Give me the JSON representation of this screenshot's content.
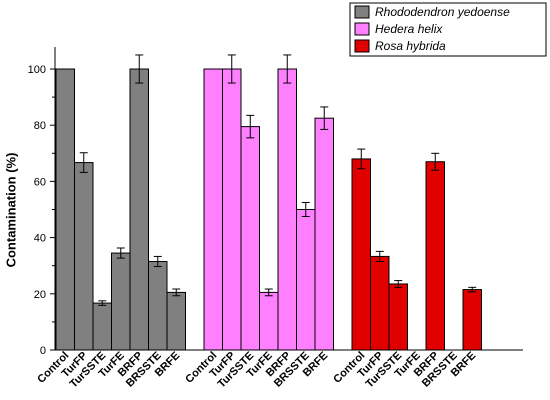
{
  "chart_data": {
    "type": "bar",
    "ylabel": "Contamination (%)",
    "ylim": [
      0,
      110
    ],
    "yticks": [
      0,
      20,
      40,
      60,
      80,
      100
    ],
    "grid": false,
    "legend_position": "top-right",
    "series": [
      {
        "name": "Rhododendron yedoense",
        "color": "#808080",
        "categories": [
          "Control",
          "TurFP",
          "TurSSTE",
          "TurFE",
          "BRFP",
          "BRSSTE",
          "BRFE"
        ],
        "values": [
          100,
          66.7,
          16.7,
          34.5,
          100,
          31.5,
          20.5
        ],
        "errors": [
          0,
          3.5,
          0.8,
          1.8,
          5,
          1.8,
          1.2
        ]
      },
      {
        "name": "Hedera helix",
        "color": "#ff80ff",
        "categories": [
          "Control",
          "TurFP",
          "TurSSTE",
          "TurFE",
          "BRFP",
          "BRSSTE",
          "BRFE"
        ],
        "values": [
          100,
          100,
          79.5,
          20.5,
          100,
          50,
          82.5
        ],
        "errors": [
          0,
          5,
          4,
          1.2,
          5,
          2.5,
          4
        ]
      },
      {
        "name": "Rosa hybrida",
        "color": "#e00000",
        "categories": [
          "Control",
          "TurFP",
          "TurSSTE",
          "TurFE",
          "BRFP",
          "BRSSTE",
          "BRFE"
        ],
        "values": [
          68,
          33.3,
          23.5,
          0,
          67,
          0,
          21.5
        ],
        "errors": [
          3.5,
          1.8,
          1.2,
          0,
          3,
          0,
          0.8
        ]
      }
    ]
  }
}
